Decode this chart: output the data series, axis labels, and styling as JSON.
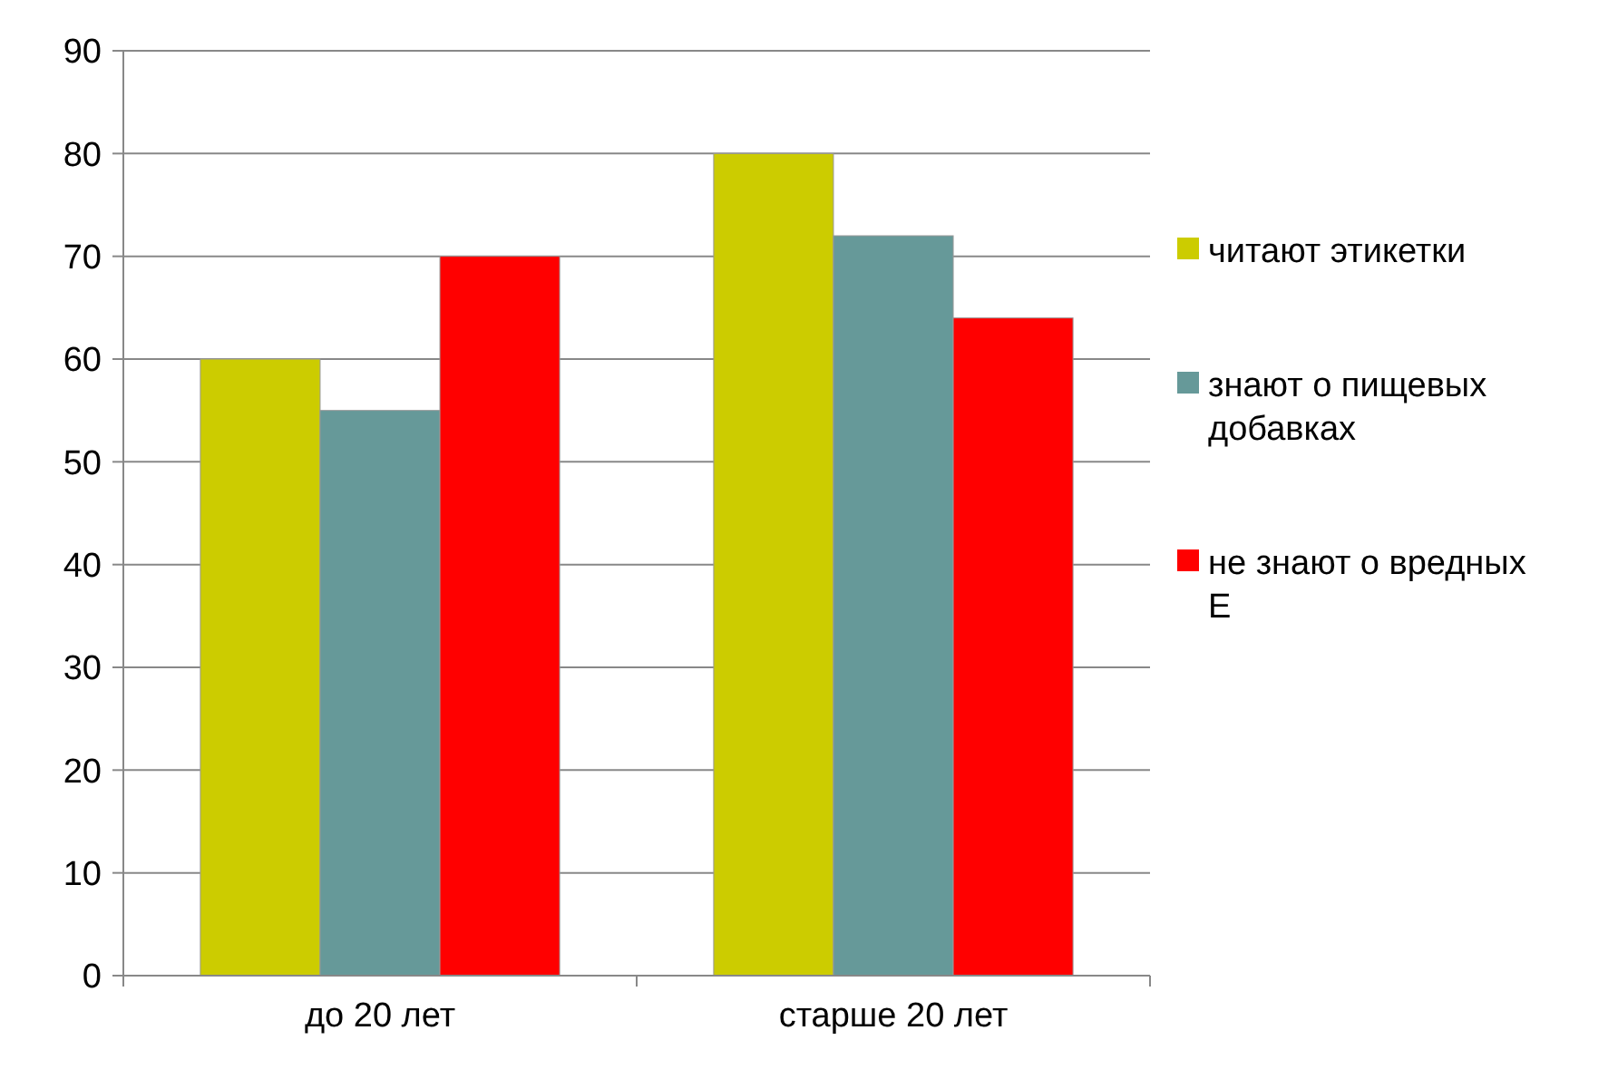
{
  "chart_data": {
    "type": "bar",
    "categories": [
      "до 20 лет",
      "старше 20 лет"
    ],
    "series": [
      {
        "name": "читают этикетки",
        "color": "#cccc00",
        "values": [
          60,
          80
        ]
      },
      {
        "name": "знают о пищевых добавках",
        "color": "#669999",
        "values": [
          55,
          72
        ]
      },
      {
        "name": "не знают о вредных Е",
        "color": "#ff0000",
        "values": [
          70,
          64
        ]
      }
    ],
    "ylim": [
      0,
      90
    ],
    "yticks": [
      0,
      10,
      20,
      30,
      40,
      50,
      60,
      70,
      80,
      90
    ],
    "grid": "y",
    "legend": "right"
  }
}
